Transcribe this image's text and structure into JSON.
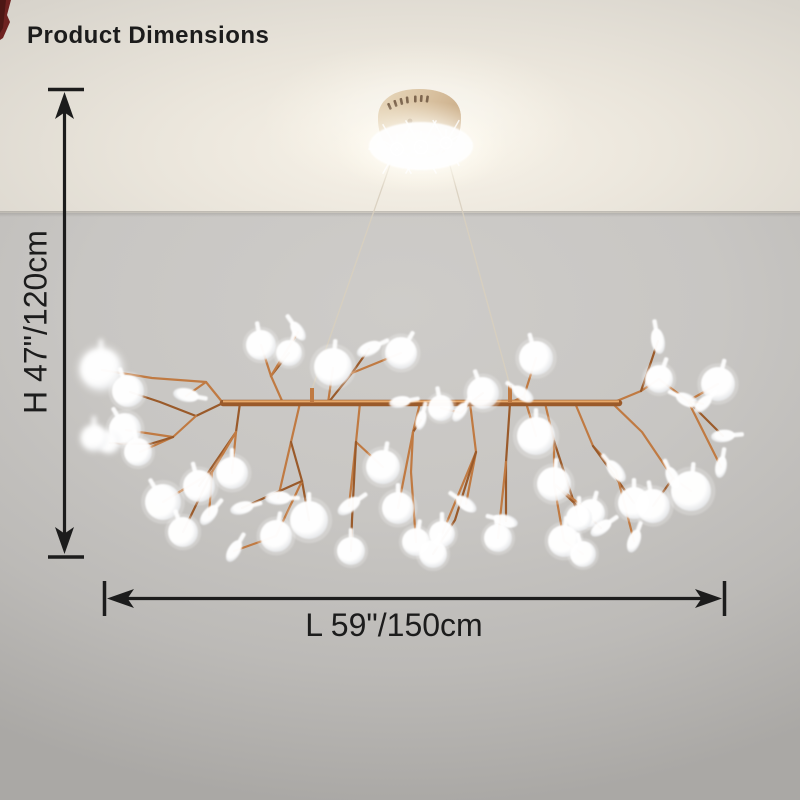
{
  "page": {
    "title": "Product Dimensions"
  },
  "dimensions": {
    "height": {
      "label": "H 47\"/120cm"
    },
    "length": {
      "label": "L 59\"/150cm"
    }
  },
  "colors": {
    "ink": "#1c1c1c",
    "copper": "#c07a42",
    "copper_dark": "#9a5a2a",
    "copper_light": "#edae6e",
    "wire": "#d9d0bf",
    "leaf_white": "#ffffff",
    "canopy_light": "#e9dabf",
    "canopy_mid": "#d6bd9b",
    "canopy_dark": "#bf9c73",
    "wall_gray": "#c6c4c1",
    "ceiling_warm": "#f8f3e9",
    "brand_red": "#6e2220"
  },
  "figure": {
    "rod": [
      223,
      403,
      619,
      403
    ],
    "stubs": [
      [
        312,
        388,
        312,
        403
      ],
      [
        510,
        385,
        510,
        403
      ]
    ],
    "wires": [
      [
        391,
        162,
        312,
        389
      ],
      [
        449,
        162,
        510,
        386
      ]
    ],
    "flares": [
      [
        397,
        149,
        13
      ],
      [
        421,
        147,
        14
      ],
      [
        446,
        143,
        12
      ]
    ],
    "branches": [
      "223,403 196,416 160,402 130,392",
      "196,416 173,437 140,452",
      "173,437 126,430",
      "173,437 150,444 110,443",
      "223,403 206,382 186,396",
      "206,382 152,378 102,370",
      "240,403 236,432 199,486",
      "236,432 232,473",
      "236,432 212,472 163,502",
      "212,472 183,532",
      "212,472 209,515",
      "283,403 271,376 261,345",
      "271,376 289,353",
      "271,376 298,332",
      "328,403 333,368",
      "328,403 352,373 369,349",
      "352,373 401,353",
      "300,403 291,442 278,498",
      "291,442 302,481 309,520",
      "302,481 276,536",
      "276,536 234,551",
      "302,481 242,508",
      "360,403 356,442 349,506",
      "356,442 383,467",
      "356,442 352,520 351,551",
      "420,403 400,402",
      "420,403 413,432 398,508",
      "413,432 421,420",
      "413,432 411,472 416,542",
      "470,403 461,413 441,408",
      "470,403 483,393",
      "470,403 476,452 466,504",
      "476,452 442,534",
      "476,452 455,520 433,554",
      "510,403 524,396 536,358",
      "524,396 536,436",
      "510,403 506,462 506,521",
      "506,462 498,538",
      "545,403 554,441 554,484",
      "554,441 579,518",
      "554,484 564,541",
      "564,541 583,554",
      "554,484 601,528",
      "554,484 591,513",
      "575,403 593,446 616,471",
      "593,446 634,503",
      "616,471 634,541",
      "612,403 641,391 659,379",
      "641,391 651,362 658,341",
      "659,379 688,401 718,384",
      "688,401 703,404",
      "688,401 723,436",
      "688,401 721,467",
      "612,403 642,432 673,478 691,491",
      "673,478 653,506"
    ],
    "leaves": [
      [
        0,
        261,
        345,
        15,
        -10,
        0
      ],
      [
        0,
        289,
        353,
        13,
        15,
        0
      ],
      [
        0,
        333,
        367,
        19,
        5,
        0
      ],
      [
        1,
        369,
        349,
        13,
        65,
        0
      ],
      [
        0,
        401,
        353,
        16,
        30,
        0
      ],
      [
        1,
        298,
        331,
        11,
        -35,
        0
      ],
      [
        0,
        101,
        369,
        21,
        0,
        1
      ],
      [
        0,
        128,
        391,
        16,
        -20,
        0
      ],
      [
        1,
        186,
        395,
        13,
        100,
        0
      ],
      [
        0,
        125,
        429,
        16,
        -30,
        0
      ],
      [
        0,
        138,
        452,
        14,
        -10,
        0
      ],
      [
        0,
        109,
        442,
        11,
        -45,
        1
      ],
      [
        0,
        94,
        438,
        13,
        0,
        1
      ],
      [
        0,
        163,
        502,
        18,
        -30,
        0
      ],
      [
        0,
        199,
        486,
        16,
        -15,
        0
      ],
      [
        0,
        183,
        532,
        15,
        -20,
        0
      ],
      [
        1,
        209,
        515,
        12,
        40,
        0
      ],
      [
        0,
        232,
        473,
        16,
        0,
        0
      ],
      [
        1,
        242,
        508,
        12,
        75,
        0
      ],
      [
        1,
        278,
        498,
        13,
        90,
        0
      ],
      [
        0,
        276,
        536,
        16,
        10,
        0
      ],
      [
        1,
        234,
        551,
        12,
        30,
        0
      ],
      [
        0,
        309,
        520,
        19,
        0,
        0
      ],
      [
        1,
        349,
        506,
        13,
        55,
        0
      ],
      [
        0,
        383,
        467,
        17,
        10,
        0
      ],
      [
        0,
        398,
        508,
        16,
        0,
        0
      ],
      [
        0,
        416,
        542,
        14,
        10,
        0
      ],
      [
        0,
        351,
        551,
        14,
        0,
        0
      ],
      [
        1,
        400,
        402,
        11,
        80,
        0
      ],
      [
        1,
        421,
        420,
        10,
        15,
        0
      ],
      [
        0,
        536,
        358,
        17,
        -15,
        0
      ],
      [
        1,
        523,
        394,
        12,
        -55,
        0
      ],
      [
        0,
        483,
        393,
        16,
        -20,
        0
      ],
      [
        1,
        460,
        412,
        11,
        35,
        0
      ],
      [
        0,
        441,
        408,
        13,
        -10,
        0
      ],
      [
        0,
        536,
        436,
        19,
        0,
        0
      ],
      [
        0,
        554,
        484,
        17,
        5,
        0
      ],
      [
        0,
        591,
        513,
        14,
        15,
        0
      ],
      [
        1,
        616,
        471,
        13,
        -40,
        0
      ],
      [
        0,
        634,
        503,
        16,
        0,
        0
      ],
      [
        1,
        658,
        341,
        13,
        -10,
        0
      ],
      [
        0,
        659,
        379,
        14,
        20,
        0
      ],
      [
        1,
        687,
        400,
        12,
        -65,
        0
      ],
      [
        0,
        718,
        384,
        17,
        15,
        0
      ],
      [
        1,
        703,
        404,
        11,
        45,
        0
      ],
      [
        1,
        723,
        436,
        12,
        85,
        0
      ],
      [
        1,
        673,
        478,
        12,
        -25,
        0
      ],
      [
        0,
        691,
        491,
        20,
        5,
        0
      ],
      [
        0,
        653,
        506,
        17,
        -10,
        0
      ],
      [
        1,
        601,
        528,
        12,
        55,
        0
      ],
      [
        1,
        634,
        541,
        12,
        20,
        0
      ],
      [
        0,
        579,
        518,
        13,
        0,
        0
      ],
      [
        0,
        564,
        541,
        16,
        5,
        0
      ],
      [
        0,
        583,
        554,
        13,
        -15,
        0
      ],
      [
        1,
        506,
        521,
        12,
        -75,
        0
      ],
      [
        0,
        498,
        538,
        14,
        -5,
        0
      ],
      [
        0,
        442,
        534,
        13,
        0,
        0
      ],
      [
        0,
        433,
        554,
        14,
        20,
        0
      ],
      [
        1,
        466,
        504,
        12,
        -55,
        0
      ],
      [
        1,
        721,
        467,
        11,
        10,
        0
      ]
    ]
  }
}
